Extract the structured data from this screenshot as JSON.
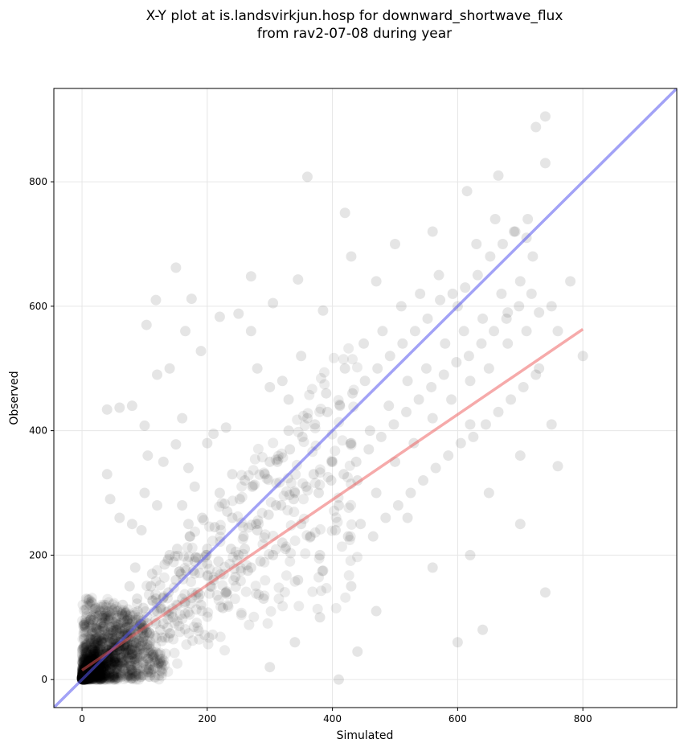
{
  "chart_data": {
    "type": "scatter",
    "title_line1": "X-Y plot at is.landsvirkjun.hosp for downward_shortwave_flux",
    "title_line2": "from rav2-07-08 during year",
    "xlabel": "Simulated",
    "ylabel": "Observed",
    "xlim": [
      -45,
      950
    ],
    "ylim": [
      -45,
      950
    ],
    "xticks": [
      0,
      200,
      400,
      600,
      800
    ],
    "yticks": [
      0,
      200,
      400,
      600,
      800
    ],
    "grid": true,
    "colors": {
      "points": "#000000",
      "one_to_one_line": "#5555ee",
      "fit_line": "#ee5555"
    },
    "one_to_one_line": {
      "x": [
        -45,
        950
      ],
      "y": [
        -45,
        950
      ]
    },
    "fit_line": {
      "x": [
        0,
        800
      ],
      "y": [
        15,
        563
      ]
    },
    "points": [
      [
        5,
        0
      ],
      [
        2,
        3
      ],
      [
        8,
        5
      ],
      [
        12,
        2
      ],
      [
        3,
        12
      ],
      [
        15,
        10
      ],
      [
        20,
        8
      ],
      [
        6,
        20
      ],
      [
        25,
        18
      ],
      [
        30,
        15
      ],
      [
        10,
        30
      ],
      [
        18,
        40
      ],
      [
        35,
        25
      ],
      [
        40,
        45
      ],
      [
        22,
        55
      ],
      [
        50,
        30
      ],
      [
        45,
        60
      ],
      [
        60,
        50
      ],
      [
        55,
        80
      ],
      [
        70,
        65
      ],
      [
        30,
        90
      ],
      [
        80,
        40
      ],
      [
        90,
        100
      ],
      [
        65,
        120
      ],
      [
        100,
        70
      ],
      [
        110,
        150
      ],
      [
        85,
        180
      ],
      [
        120,
        110
      ],
      [
        130,
        90
      ],
      [
        140,
        200
      ],
      [
        150,
        160
      ],
      [
        95,
        240
      ],
      [
        160,
        130
      ],
      [
        170,
        250
      ],
      [
        180,
        190
      ],
      [
        190,
        120
      ],
      [
        200,
        210
      ],
      [
        210,
        160
      ],
      [
        220,
        300
      ],
      [
        230,
        140
      ],
      [
        240,
        260
      ],
      [
        250,
        200
      ],
      [
        260,
        320
      ],
      [
        270,
        180
      ],
      [
        280,
        240
      ],
      [
        290,
        130
      ],
      [
        300,
        350
      ],
      [
        310,
        280
      ],
      [
        320,
        220
      ],
      [
        330,
        400
      ],
      [
        340,
        300
      ],
      [
        350,
        250
      ],
      [
        360,
        420
      ],
      [
        370,
        330
      ],
      [
        380,
        200
      ],
      [
        390,
        460
      ],
      [
        400,
        350
      ],
      [
        410,
        280
      ],
      [
        420,
        500
      ],
      [
        430,
        380
      ],
      [
        440,
        320
      ],
      [
        450,
        540
      ],
      [
        460,
        400
      ],
      [
        470,
        300
      ],
      [
        480,
        560
      ],
      [
        490,
        440
      ],
      [
        500,
        350
      ],
      [
        510,
        600
      ],
      [
        520,
        480
      ],
      [
        530,
        380
      ],
      [
        540,
        620
      ],
      [
        550,
        500
      ],
      [
        560,
        420
      ],
      [
        570,
        650
      ],
      [
        580,
        540
      ],
      [
        590,
        450
      ],
      [
        600,
        600
      ],
      [
        610,
        560
      ],
      [
        620,
        480
      ],
      [
        630,
        700
      ],
      [
        640,
        580
      ],
      [
        650,
        500
      ],
      [
        660,
        740
      ],
      [
        670,
        620
      ],
      [
        680,
        540
      ],
      [
        690,
        720
      ],
      [
        700,
        640
      ],
      [
        710,
        560
      ],
      [
        720,
        680
      ],
      [
        730,
        590
      ],
      [
        740,
        830
      ],
      [
        750,
        600
      ],
      [
        760,
        560
      ],
      [
        780,
        640
      ],
      [
        800,
        520
      ],
      [
        740,
        905
      ],
      [
        725,
        888
      ],
      [
        665,
        810
      ],
      [
        360,
        808
      ],
      [
        420,
        750
      ],
      [
        270,
        648
      ],
      [
        345,
        643
      ],
      [
        150,
        662
      ],
      [
        175,
        612
      ],
      [
        118,
        610
      ],
      [
        103,
        570
      ],
      [
        165,
        560
      ],
      [
        190,
        528
      ],
      [
        220,
        583
      ],
      [
        250,
        588
      ],
      [
        305,
        605
      ],
      [
        385,
        593
      ],
      [
        430,
        680
      ],
      [
        500,
        700
      ],
      [
        470,
        640
      ],
      [
        560,
        720
      ],
      [
        615,
        785
      ],
      [
        710,
        710
      ],
      [
        680,
        590
      ],
      [
        730,
        500
      ],
      [
        620,
        410
      ],
      [
        700,
        360
      ],
      [
        750,
        410
      ],
      [
        760,
        343
      ],
      [
        740,
        140
      ],
      [
        700,
        250
      ],
      [
        640,
        80
      ],
      [
        600,
        60
      ],
      [
        620,
        200
      ],
      [
        650,
        300
      ],
      [
        560,
        180
      ],
      [
        520,
        260
      ],
      [
        470,
        110
      ],
      [
        440,
        45
      ],
      [
        410,
        0
      ],
      [
        430,
        150
      ],
      [
        380,
        100
      ],
      [
        340,
        60
      ],
      [
        300,
        20
      ],
      [
        350,
        520
      ],
      [
        330,
        450
      ],
      [
        270,
        560
      ],
      [
        200,
        380
      ],
      [
        230,
        405
      ],
      [
        160,
        420
      ],
      [
        140,
        500
      ],
      [
        120,
        490
      ],
      [
        100,
        408
      ],
      [
        60,
        437
      ],
      [
        40,
        434
      ],
      [
        40,
        330
      ],
      [
        45,
        290
      ],
      [
        80,
        440
      ],
      [
        105,
        360
      ],
      [
        150,
        378
      ],
      [
        170,
        340
      ],
      [
        180,
        310
      ],
      [
        210,
        395
      ],
      [
        240,
        330
      ],
      [
        260,
        210
      ],
      [
        280,
        500
      ],
      [
        300,
        470
      ],
      [
        320,
        480
      ],
      [
        160,
        280
      ],
      [
        60,
        260
      ],
      [
        80,
        250
      ],
      [
        100,
        300
      ],
      [
        120,
        280
      ],
      [
        130,
        350
      ],
      [
        5,
        2
      ],
      [
        7,
        4
      ],
      [
        9,
        1
      ],
      [
        11,
        6
      ],
      [
        4,
        8
      ],
      [
        14,
        3
      ],
      [
        16,
        12
      ],
      [
        3,
        5
      ],
      [
        19,
        15
      ],
      [
        13,
        20
      ],
      [
        24,
        10
      ],
      [
        28,
        22
      ],
      [
        17,
        33
      ],
      [
        33,
        28
      ],
      [
        27,
        38
      ],
      [
        38,
        20
      ],
      [
        42,
        35
      ],
      [
        21,
        47
      ],
      [
        48,
        52
      ],
      [
        52,
        40
      ],
      [
        36,
        65
      ],
      [
        58,
        35
      ],
      [
        62,
        70
      ],
      [
        44,
        85
      ],
      [
        68,
        55
      ],
      [
        72,
        95
      ],
      [
        57,
        110
      ],
      [
        78,
        75
      ],
      [
        83,
        60
      ],
      [
        88,
        130
      ],
      [
        92,
        85
      ],
      [
        76,
        150
      ],
      [
        98,
        115
      ],
      [
        105,
        90
      ],
      [
        112,
        170
      ],
      [
        118,
        130
      ],
      [
        125,
        80
      ],
      [
        132,
        185
      ],
      [
        138,
        140
      ],
      [
        145,
        100
      ],
      [
        152,
        210
      ],
      [
        158,
        170
      ],
      [
        165,
        125
      ],
      [
        172,
        230
      ],
      [
        178,
        175
      ],
      [
        185,
        140
      ],
      [
        192,
        260
      ],
      [
        198,
        200
      ],
      [
        205,
        150
      ],
      [
        212,
        245
      ],
      [
        218,
        190
      ],
      [
        225,
        115
      ],
      [
        232,
        270
      ],
      [
        238,
        210
      ],
      [
        245,
        165
      ],
      [
        252,
        290
      ],
      [
        258,
        230
      ],
      [
        265,
        175
      ],
      [
        272,
        310
      ],
      [
        278,
        250
      ],
      [
        285,
        190
      ],
      [
        292,
        330
      ],
      [
        298,
        265
      ],
      [
        305,
        200
      ],
      [
        312,
        350
      ],
      [
        318,
        280
      ],
      [
        325,
        210
      ],
      [
        332,
        370
      ],
      [
        338,
        290
      ],
      [
        345,
        160
      ],
      [
        352,
        390
      ],
      [
        358,
        310
      ],
      [
        365,
        230
      ],
      [
        372,
        410
      ],
      [
        378,
        300
      ],
      [
        385,
        175
      ],
      [
        392,
        430
      ],
      [
        398,
        320
      ],
      [
        405,
        240
      ],
      [
        412,
        440
      ],
      [
        418,
        330
      ],
      [
        425,
        230
      ],
      [
        432,
        460
      ],
      [
        438,
        350
      ],
      [
        445,
        250
      ],
      [
        452,
        480
      ],
      [
        458,
        370
      ],
      [
        465,
        230
      ],
      [
        472,
        500
      ],
      [
        478,
        390
      ],
      [
        485,
        260
      ],
      [
        492,
        520
      ],
      [
        498,
        410
      ],
      [
        505,
        280
      ],
      [
        512,
        540
      ],
      [
        518,
        430
      ],
      [
        525,
        300
      ],
      [
        532,
        560
      ],
      [
        538,
        450
      ],
      [
        545,
        320
      ],
      [
        552,
        580
      ],
      [
        558,
        470
      ],
      [
        565,
        340
      ],
      [
        572,
        610
      ],
      [
        578,
        490
      ],
      [
        585,
        360
      ],
      [
        592,
        620
      ],
      [
        598,
        510
      ],
      [
        605,
        380
      ],
      [
        612,
        630
      ],
      [
        618,
        520
      ],
      [
        625,
        390
      ],
      [
        632,
        650
      ],
      [
        638,
        540
      ],
      [
        645,
        410
      ],
      [
        652,
        680
      ],
      [
        658,
        560
      ],
      [
        665,
        430
      ],
      [
        672,
        700
      ],
      [
        678,
        580
      ],
      [
        685,
        450
      ],
      [
        692,
        720
      ],
      [
        698,
        600
      ],
      [
        705,
        470
      ],
      [
        712,
        740
      ],
      [
        718,
        620
      ],
      [
        725,
        490
      ]
    ],
    "dense_cluster": {
      "center": [
        25,
        25
      ],
      "spread": 45,
      "count": 1800
    }
  }
}
